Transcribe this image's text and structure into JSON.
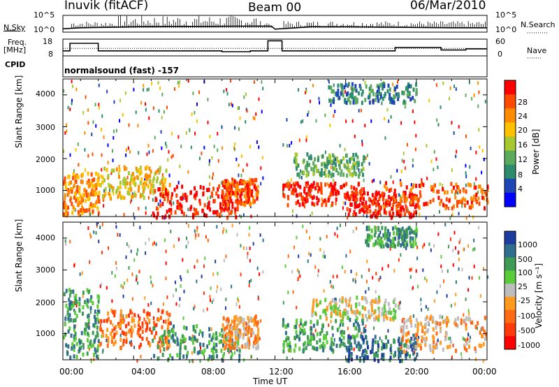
{
  "header": {
    "station": "Inuvik (fitACF)",
    "beam": "Beam 00",
    "date": "06/Mar/2010"
  },
  "strip_labels": {
    "nsky": "N.Sky",
    "freq_line1": "Freq.",
    "freq_line2": "[MHz]",
    "cpid": "CPID",
    "nsearch": "N.Search",
    "nave": "Nave",
    "cpid_text": "normalsound (fast) -157"
  },
  "colorbars": {
    "power": {
      "label": "Power [dB]",
      "ticks": [
        "28",
        "24",
        "20",
        "16",
        "12",
        "8",
        "4"
      ],
      "colors": [
        "#ff0000",
        "#ff4a00",
        "#ff8c00",
        "#ffc000",
        "#a8c832",
        "#5caa5c",
        "#2e8c6e",
        "#1e46b4",
        "#0000ff"
      ]
    },
    "velocity": {
      "label": "Velocity [m s⁻¹]",
      "ticks": [
        "1000",
        "500",
        "100",
        "25",
        "-25",
        "-100",
        "-500",
        "-1000"
      ],
      "colors": [
        "#1e3ca0",
        "#2f6e8c",
        "#3f9a55",
        "#5acc3a",
        "#bdbdbd",
        "#ff9a1e",
        "#ff6a14",
        "#ff3a0a",
        "#ff0000"
      ]
    }
  },
  "chart_data": [
    {
      "type": "line",
      "name": "N.Sky / N.Search",
      "y_ticks_left": [
        "10^5",
        "10^0"
      ],
      "y_ticks_right": [
        "10^5",
        "10^0"
      ],
      "ylim": [
        0,
        5
      ],
      "xlim": [
        0,
        24
      ],
      "series": [
        {
          "x": [
            0,
            1,
            2,
            4,
            6,
            8,
            10,
            11.8,
            12,
            13,
            14,
            16,
            18,
            20,
            22,
            24
          ],
          "y": [
            1.0,
            1.3,
            1.4,
            1.6,
            1.7,
            1.7,
            1.8,
            1.8,
            0.9,
            1.2,
            1.6,
            1.6,
            1.5,
            1.4,
            1.3,
            1.3
          ]
        }
      ]
    },
    {
      "type": "line",
      "name": "Freq / Nave",
      "y_ticks_left": [
        "18",
        "8"
      ],
      "y_ticks_right": [
        "60",
        "0"
      ],
      "ylim": [
        8,
        18
      ],
      "xlim": [
        0,
        24
      ],
      "series": [
        {
          "x": [
            0,
            0.4,
            0.4,
            2.0,
            2.0,
            9.0,
            9.0,
            10.6,
            10.6,
            11.6,
            11.6,
            12.4,
            12.4,
            18.8,
            18.8,
            21.4,
            21.4,
            22.8,
            22.8,
            24
          ],
          "y": [
            11,
            11,
            15.5,
            15.5,
            11,
            11,
            10.5,
            10.5,
            11,
            11,
            17,
            17,
            11,
            11,
            13,
            13,
            11.5,
            11.5,
            12.2,
            12.2
          ]
        },
        {
          "x": [
            0,
            24
          ],
          "y": [
            12.5,
            12.5
          ]
        }
      ]
    },
    {
      "type": "heatmap",
      "title": "Power",
      "xlabel": "",
      "ylabel": "Slant Range [km]",
      "x_ticks": [
        "00:00",
        "04:00",
        "08:00",
        "12:00",
        "16:00",
        "20:00",
        "00:00"
      ],
      "y_ticks": [
        "1000",
        "2000",
        "3000",
        "4000"
      ],
      "xlim": [
        0,
        24
      ],
      "ylim": [
        180,
        4500
      ],
      "regions": [
        {
          "t0": 0,
          "t1": 2,
          "r0": 300,
          "r1": 1600,
          "level": 6
        },
        {
          "t0": 2,
          "t1": 6,
          "r0": 800,
          "r1": 1800,
          "level": 5
        },
        {
          "t0": 5,
          "t1": 10,
          "r0": 200,
          "r1": 1200,
          "level": 8
        },
        {
          "t0": 9,
          "t1": 11,
          "r0": 600,
          "r1": 1400,
          "level": 7
        },
        {
          "t0": 12.4,
          "t1": 17,
          "r0": 600,
          "r1": 1300,
          "level": 8
        },
        {
          "t0": 13,
          "t1": 17,
          "r0": 1500,
          "r1": 2200,
          "level": 3
        },
        {
          "t0": 16,
          "t1": 20,
          "r0": 200,
          "r1": 1000,
          "level": 8
        },
        {
          "t0": 18,
          "t1": 24,
          "r0": 500,
          "r1": 1300,
          "level": 7
        },
        {
          "t0": 15,
          "t1": 20,
          "r0": 3800,
          "r1": 4400,
          "level": 2
        }
      ]
    },
    {
      "type": "heatmap",
      "title": "Velocity",
      "xlabel": "Time UT",
      "ylabel": "Slant Range [km]",
      "x_ticks": [
        "00:00",
        "04:00",
        "08:00",
        "12:00",
        "16:00",
        "20:00",
        "00:00"
      ],
      "y_ticks": [
        "1000",
        "2000",
        "3000",
        "4000"
      ],
      "xlim": [
        0,
        24
      ],
      "ylim": [
        180,
        4500
      ],
      "regions": [
        {
          "t0": 0,
          "t1": 2,
          "r0": 300,
          "r1": 2500,
          "level": 6
        },
        {
          "t0": 2,
          "t1": 6,
          "r0": 600,
          "r1": 1800,
          "level": 2
        },
        {
          "t0": 5,
          "t1": 10,
          "r0": 200,
          "r1": 1300,
          "level": 6
        },
        {
          "t0": 9,
          "t1": 11,
          "r0": 600,
          "r1": 1600,
          "level": 3
        },
        {
          "t0": 12.4,
          "t1": 17,
          "r0": 500,
          "r1": 1500,
          "level": 6
        },
        {
          "t0": 14,
          "t1": 19,
          "r0": 1500,
          "r1": 2200,
          "level": 4
        },
        {
          "t0": 16,
          "t1": 20,
          "r0": 200,
          "r1": 1000,
          "level": 7
        },
        {
          "t0": 19,
          "t1": 24,
          "r0": 500,
          "r1": 1600,
          "level": 3
        },
        {
          "t0": 17,
          "t1": 20,
          "r0": 3800,
          "r1": 4400,
          "level": 6
        }
      ]
    }
  ]
}
